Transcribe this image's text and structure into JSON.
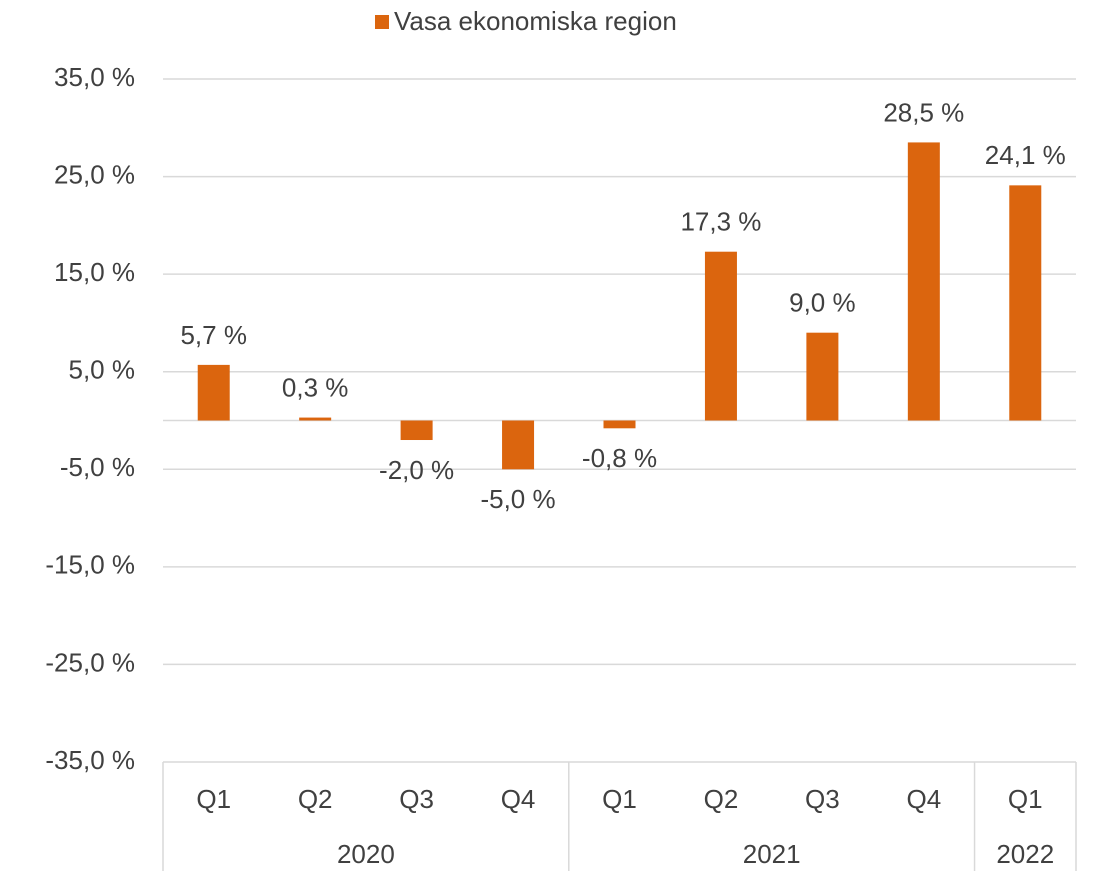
{
  "chart_data": {
    "type": "bar",
    "legend": "Vasa ekonomiska region",
    "categories": [
      "Q1",
      "Q2",
      "Q3",
      "Q4",
      "Q1",
      "Q2",
      "Q3",
      "Q4",
      "Q1"
    ],
    "groups": [
      {
        "label": "2020",
        "span": 4
      },
      {
        "label": "2021",
        "span": 4
      },
      {
        "label": "2022",
        "span": 1
      }
    ],
    "values": [
      5.7,
      0.3,
      -2.0,
      -5.0,
      -0.8,
      17.3,
      9.0,
      28.5,
      24.1
    ],
    "value_labels": [
      "5,7 %",
      "0,3 %",
      "-2,0 %",
      "-5,0 %",
      "-0,8 %",
      "17,3 %",
      "9,0 %",
      "28,5 %",
      "24,1 %"
    ],
    "color": "#db650e",
    "ylim": [
      -35,
      35
    ],
    "yticks": [
      {
        "value": -35,
        "label": "-35,0 %"
      },
      {
        "value": -25,
        "label": "-25,0 %"
      },
      {
        "value": -15,
        "label": "-15,0 %"
      },
      {
        "value": -5,
        "label": "-5,0 %"
      },
      {
        "value": 5,
        "label": "5,0 %"
      },
      {
        "value": 15,
        "label": "15,0 %"
      },
      {
        "value": 25,
        "label": "25,0 %"
      },
      {
        "value": 35,
        "label": "35,0 %"
      }
    ],
    "grid": true
  }
}
